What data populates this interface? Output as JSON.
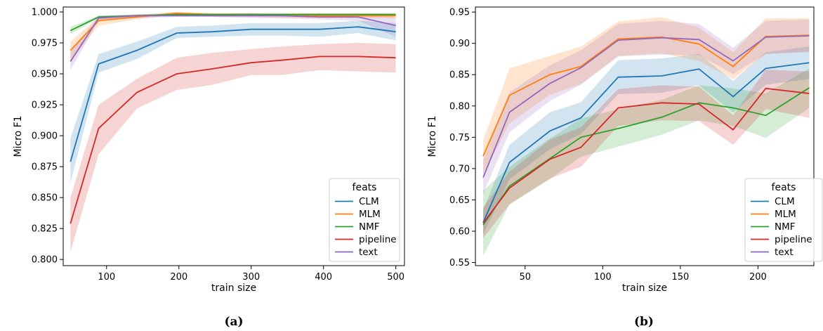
{
  "chart_data": [
    {
      "type": "line",
      "panel_label": "(a)",
      "xlabel": "train size",
      "ylabel": "Micro F1",
      "xlim": [
        40,
        512
      ],
      "ylim": [
        0.795,
        1.004
      ],
      "xticks": [
        100,
        200,
        300,
        400,
        500
      ],
      "yticks": [
        0.8,
        0.825,
        0.85,
        0.875,
        0.9,
        0.925,
        0.95,
        0.975,
        1.0
      ],
      "ytick_format": 3,
      "grid": false,
      "legend_title": "feats",
      "legend_position": "lower-right",
      "x": [
        50,
        89,
        142,
        197,
        246,
        300,
        342,
        395,
        448,
        500
      ],
      "series": [
        {
          "name": "CLM",
          "color": "#1f77b4",
          "values": [
            0.879,
            0.958,
            0.969,
            0.983,
            0.984,
            0.986,
            0.986,
            0.986,
            0.988,
            0.984
          ],
          "lower": [
            0.862,
            0.951,
            0.962,
            0.979,
            0.98,
            0.981,
            0.981,
            0.98,
            0.983,
            0.977
          ],
          "upper": [
            0.898,
            0.966,
            0.976,
            0.988,
            0.989,
            0.991,
            0.991,
            0.991,
            0.993,
            0.991
          ]
        },
        {
          "name": "MLM",
          "color": "#ff7f0e",
          "values": [
            0.969,
            0.993,
            0.996,
            0.999,
            0.998,
            0.998,
            0.997,
            0.997,
            0.997,
            0.997
          ],
          "lower": [
            0.96,
            0.989,
            0.994,
            0.998,
            0.996,
            0.996,
            0.995,
            0.995,
            0.995,
            0.995
          ],
          "upper": [
            0.976,
            0.996,
            0.998,
            1.0,
            0.999,
            0.999,
            0.999,
            0.999,
            0.999,
            0.999
          ]
        },
        {
          "name": "NMF",
          "color": "#2ca02c",
          "values": [
            0.985,
            0.996,
            0.997,
            0.998,
            0.998,
            0.998,
            0.998,
            0.998,
            0.998,
            0.998
          ],
          "lower": [
            0.982,
            0.995,
            0.996,
            0.997,
            0.997,
            0.997,
            0.997,
            0.997,
            0.997,
            0.997
          ],
          "upper": [
            0.988,
            0.997,
            0.998,
            0.999,
            0.999,
            0.999,
            0.999,
            0.999,
            0.999,
            0.999
          ]
        },
        {
          "name": "pipeline",
          "color": "#d62728",
          "values": [
            0.829,
            0.906,
            0.935,
            0.95,
            0.954,
            0.959,
            0.961,
            0.964,
            0.964,
            0.963
          ],
          "lower": [
            0.806,
            0.885,
            0.922,
            0.937,
            0.941,
            0.949,
            0.949,
            0.953,
            0.952,
            0.951
          ],
          "upper": [
            0.85,
            0.925,
            0.946,
            0.963,
            0.967,
            0.97,
            0.972,
            0.974,
            0.975,
            0.974
          ]
        },
        {
          "name": "text",
          "color": "#9467bd",
          "values": [
            0.96,
            0.995,
            0.997,
            0.997,
            0.997,
            0.997,
            0.997,
            0.996,
            0.996,
            0.989
          ],
          "lower": [
            0.953,
            0.993,
            0.995,
            0.996,
            0.996,
            0.995,
            0.995,
            0.994,
            0.993,
            0.98
          ],
          "upper": [
            0.968,
            0.997,
            0.998,
            0.998,
            0.998,
            0.999,
            0.998,
            0.998,
            0.998,
            0.996
          ]
        }
      ]
    },
    {
      "type": "line",
      "panel_label": "(b)",
      "xlabel": "train size",
      "ylabel": "Micro F1",
      "xlim": [
        18,
        236
      ],
      "ylim": [
        0.545,
        0.958
      ],
      "xticks": [
        50,
        100,
        150,
        200
      ],
      "yticks": [
        0.55,
        0.6,
        0.65,
        0.7,
        0.75,
        0.8,
        0.85,
        0.9,
        0.95
      ],
      "ytick_format": 2,
      "grid": false,
      "legend_title": "feats",
      "legend_position": "lower-right",
      "x": [
        23,
        40,
        66,
        86,
        110,
        138,
        162,
        184,
        205,
        233
      ],
      "series": [
        {
          "name": "CLM",
          "color": "#1f77b4",
          "values": [
            0.614,
            0.71,
            0.76,
            0.781,
            0.846,
            0.848,
            0.859,
            0.815,
            0.86,
            0.869
          ],
          "lower": [
            0.595,
            0.683,
            0.731,
            0.755,
            0.819,
            0.821,
            0.833,
            0.79,
            0.834,
            0.843
          ],
          "upper": [
            0.634,
            0.738,
            0.79,
            0.806,
            0.873,
            0.876,
            0.883,
            0.84,
            0.886,
            0.895
          ]
        },
        {
          "name": "MLM",
          "color": "#ff7f0e",
          "values": [
            0.72,
            0.817,
            0.85,
            0.863,
            0.907,
            0.91,
            0.899,
            0.863,
            0.911,
            0.913
          ],
          "lower": [
            0.692,
            0.772,
            0.818,
            0.835,
            0.88,
            0.884,
            0.872,
            0.843,
            0.883,
            0.887
          ],
          "upper": [
            0.745,
            0.86,
            0.88,
            0.895,
            0.935,
            0.942,
            0.925,
            0.886,
            0.94,
            0.94
          ]
        },
        {
          "name": "NMF",
          "color": "#2ca02c",
          "values": [
            0.61,
            0.672,
            0.716,
            0.75,
            0.764,
            0.782,
            0.805,
            0.797,
            0.785,
            0.829
          ],
          "lower": [
            0.561,
            0.643,
            0.683,
            0.719,
            0.735,
            0.754,
            0.777,
            0.768,
            0.749,
            0.797
          ],
          "upper": [
            0.665,
            0.703,
            0.748,
            0.78,
            0.795,
            0.81,
            0.833,
            0.828,
            0.82,
            0.86
          ]
        },
        {
          "name": "pipeline",
          "color": "#d62728",
          "values": [
            0.613,
            0.669,
            0.715,
            0.734,
            0.797,
            0.805,
            0.803,
            0.762,
            0.828,
            0.82
          ],
          "lower": [
            0.589,
            0.643,
            0.684,
            0.703,
            0.768,
            0.777,
            0.776,
            0.738,
            0.795,
            0.781
          ],
          "upper": [
            0.638,
            0.695,
            0.746,
            0.766,
            0.827,
            0.833,
            0.831,
            0.785,
            0.858,
            0.855
          ]
        },
        {
          "name": "text",
          "color": "#9467bd",
          "values": [
            0.686,
            0.79,
            0.836,
            0.861,
            0.905,
            0.909,
            0.906,
            0.872,
            0.91,
            0.912
          ],
          "lower": [
            0.66,
            0.758,
            0.808,
            0.834,
            0.879,
            0.882,
            0.881,
            0.851,
            0.883,
            0.886
          ],
          "upper": [
            0.713,
            0.822,
            0.865,
            0.889,
            0.931,
            0.936,
            0.931,
            0.893,
            0.936,
            0.938
          ]
        }
      ]
    }
  ]
}
